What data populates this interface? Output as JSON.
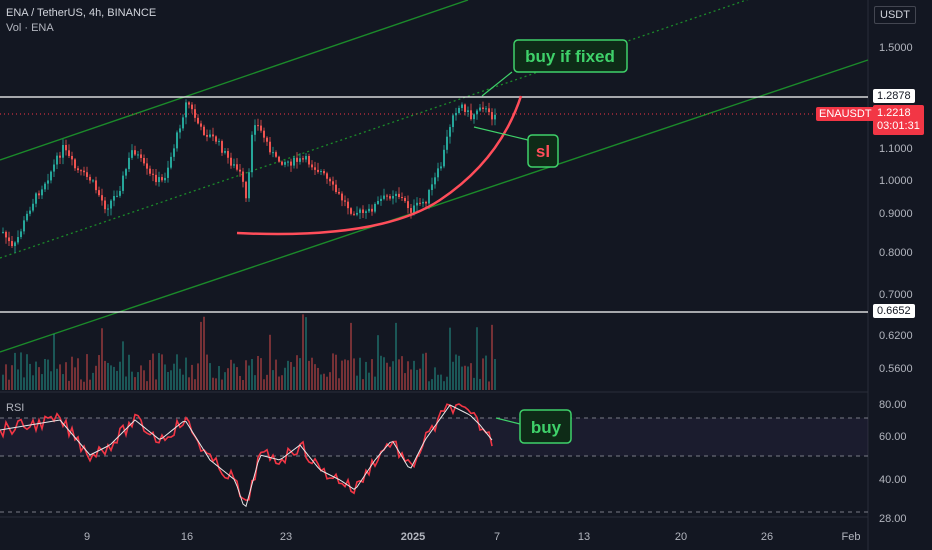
{
  "header": {
    "symbol_line": "ENA / TetherUS, 4h, BINANCE",
    "volume_line": "Vol · ENA",
    "currency_button": "USDT"
  },
  "price_axis": {
    "ticks": [
      "1.5000",
      "1.1000",
      "1.0000",
      "0.9000",
      "0.8000",
      "0.7000",
      "0.6200",
      "0.5600"
    ],
    "level_high": "1.2878",
    "level_low": "0.6652",
    "current_symbol": "ENAUSDT",
    "current_price": "1.2218",
    "countdown": "03:01:31"
  },
  "rsi_panel": {
    "label": "RSI",
    "ticks": [
      "80.00",
      "60.00",
      "40.00",
      "28.00"
    ]
  },
  "time_axis": {
    "ticks": [
      "9",
      "16",
      "23",
      "2025",
      "7",
      "13",
      "20",
      "26",
      "Feb"
    ]
  },
  "annotations": {
    "buy_if_fixed": "buy if fixed",
    "sl": "sl",
    "buy": "buy"
  },
  "colors": {
    "background": "#131722",
    "up": "#26a69a",
    "down": "#ef5350",
    "channel": "#1b8a2a",
    "annotation_green": "#3fd16a",
    "annotation_red": "#ff4d5a",
    "price_badge": "#f23645",
    "rsi": "#f23645",
    "rsi_ma": "#e6e6e6"
  }
}
